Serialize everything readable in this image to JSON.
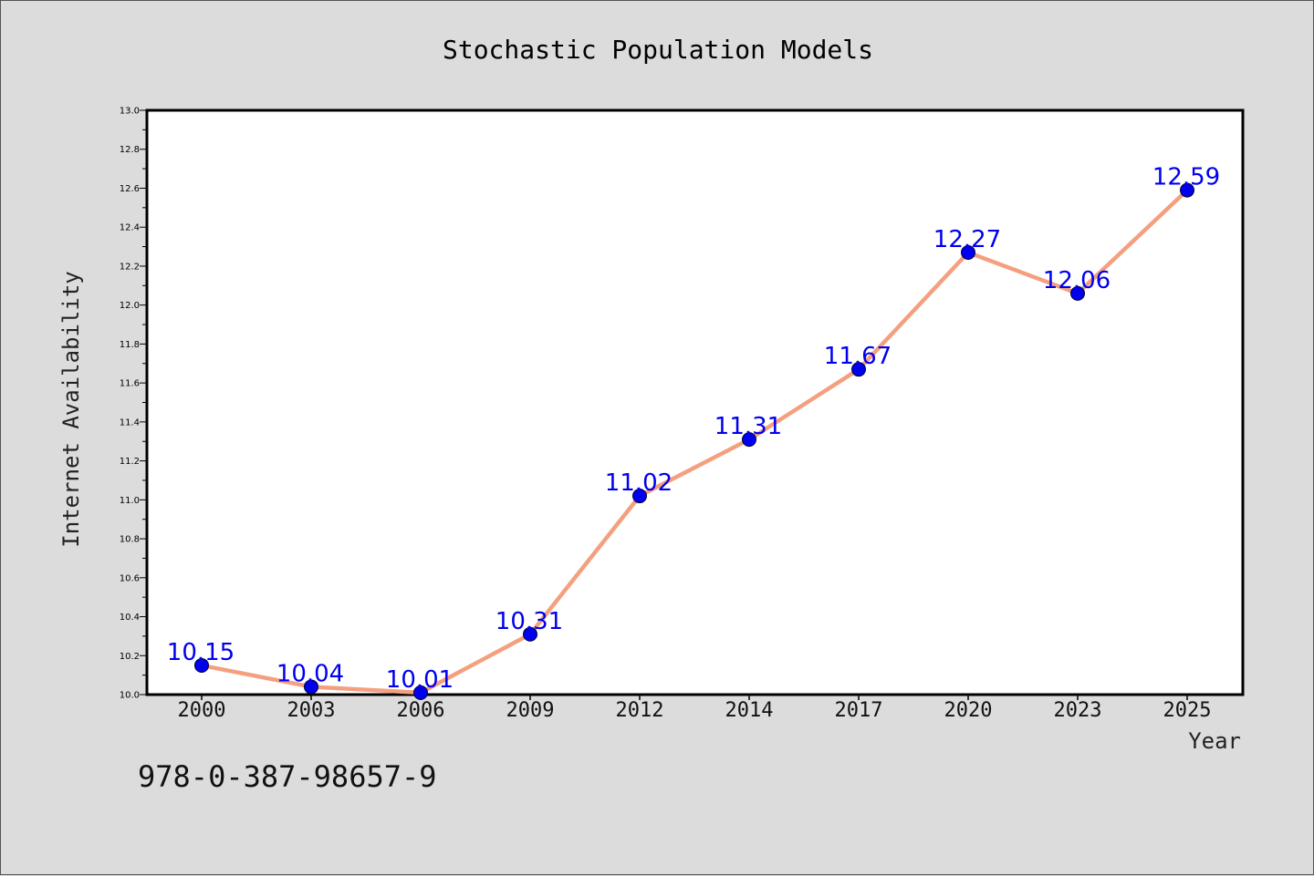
{
  "chart_data": {
    "type": "line",
    "title": "Stochastic Population Models",
    "xlabel": "Year",
    "ylabel": "Internet Availability",
    "categories": [
      "2000",
      "2003",
      "2006",
      "2009",
      "2012",
      "2014",
      "2017",
      "2020",
      "2023",
      "2025"
    ],
    "series": [
      {
        "values": [
          10.15,
          10.04,
          10.01,
          10.31,
          11.02,
          11.31,
          11.67,
          12.27,
          12.06,
          12.59
        ],
        "labels": [
          "10.15",
          "10.04",
          "10.01",
          "10.31",
          "11.02",
          "11.31",
          "11.67",
          "12.27",
          "12.06",
          "12.59"
        ]
      }
    ],
    "ylim": [
      10.0,
      13.0
    ],
    "yticks": [
      "10.0",
      "10.2",
      "10.4",
      "10.6",
      "10.8",
      "11.0",
      "11.2",
      "11.4",
      "11.6",
      "11.8",
      "12.0",
      "12.2",
      "12.4",
      "12.6",
      "12.8",
      "13.0"
    ],
    "grid": false,
    "legend": "none",
    "colors": {
      "line": "#f4a07f",
      "marker": "#0000ee",
      "data_label": "#0000ee",
      "plot_background": "#ffffff",
      "figure_background": "#dcdcdc"
    }
  },
  "footnote": "978-0-387-98657-9"
}
